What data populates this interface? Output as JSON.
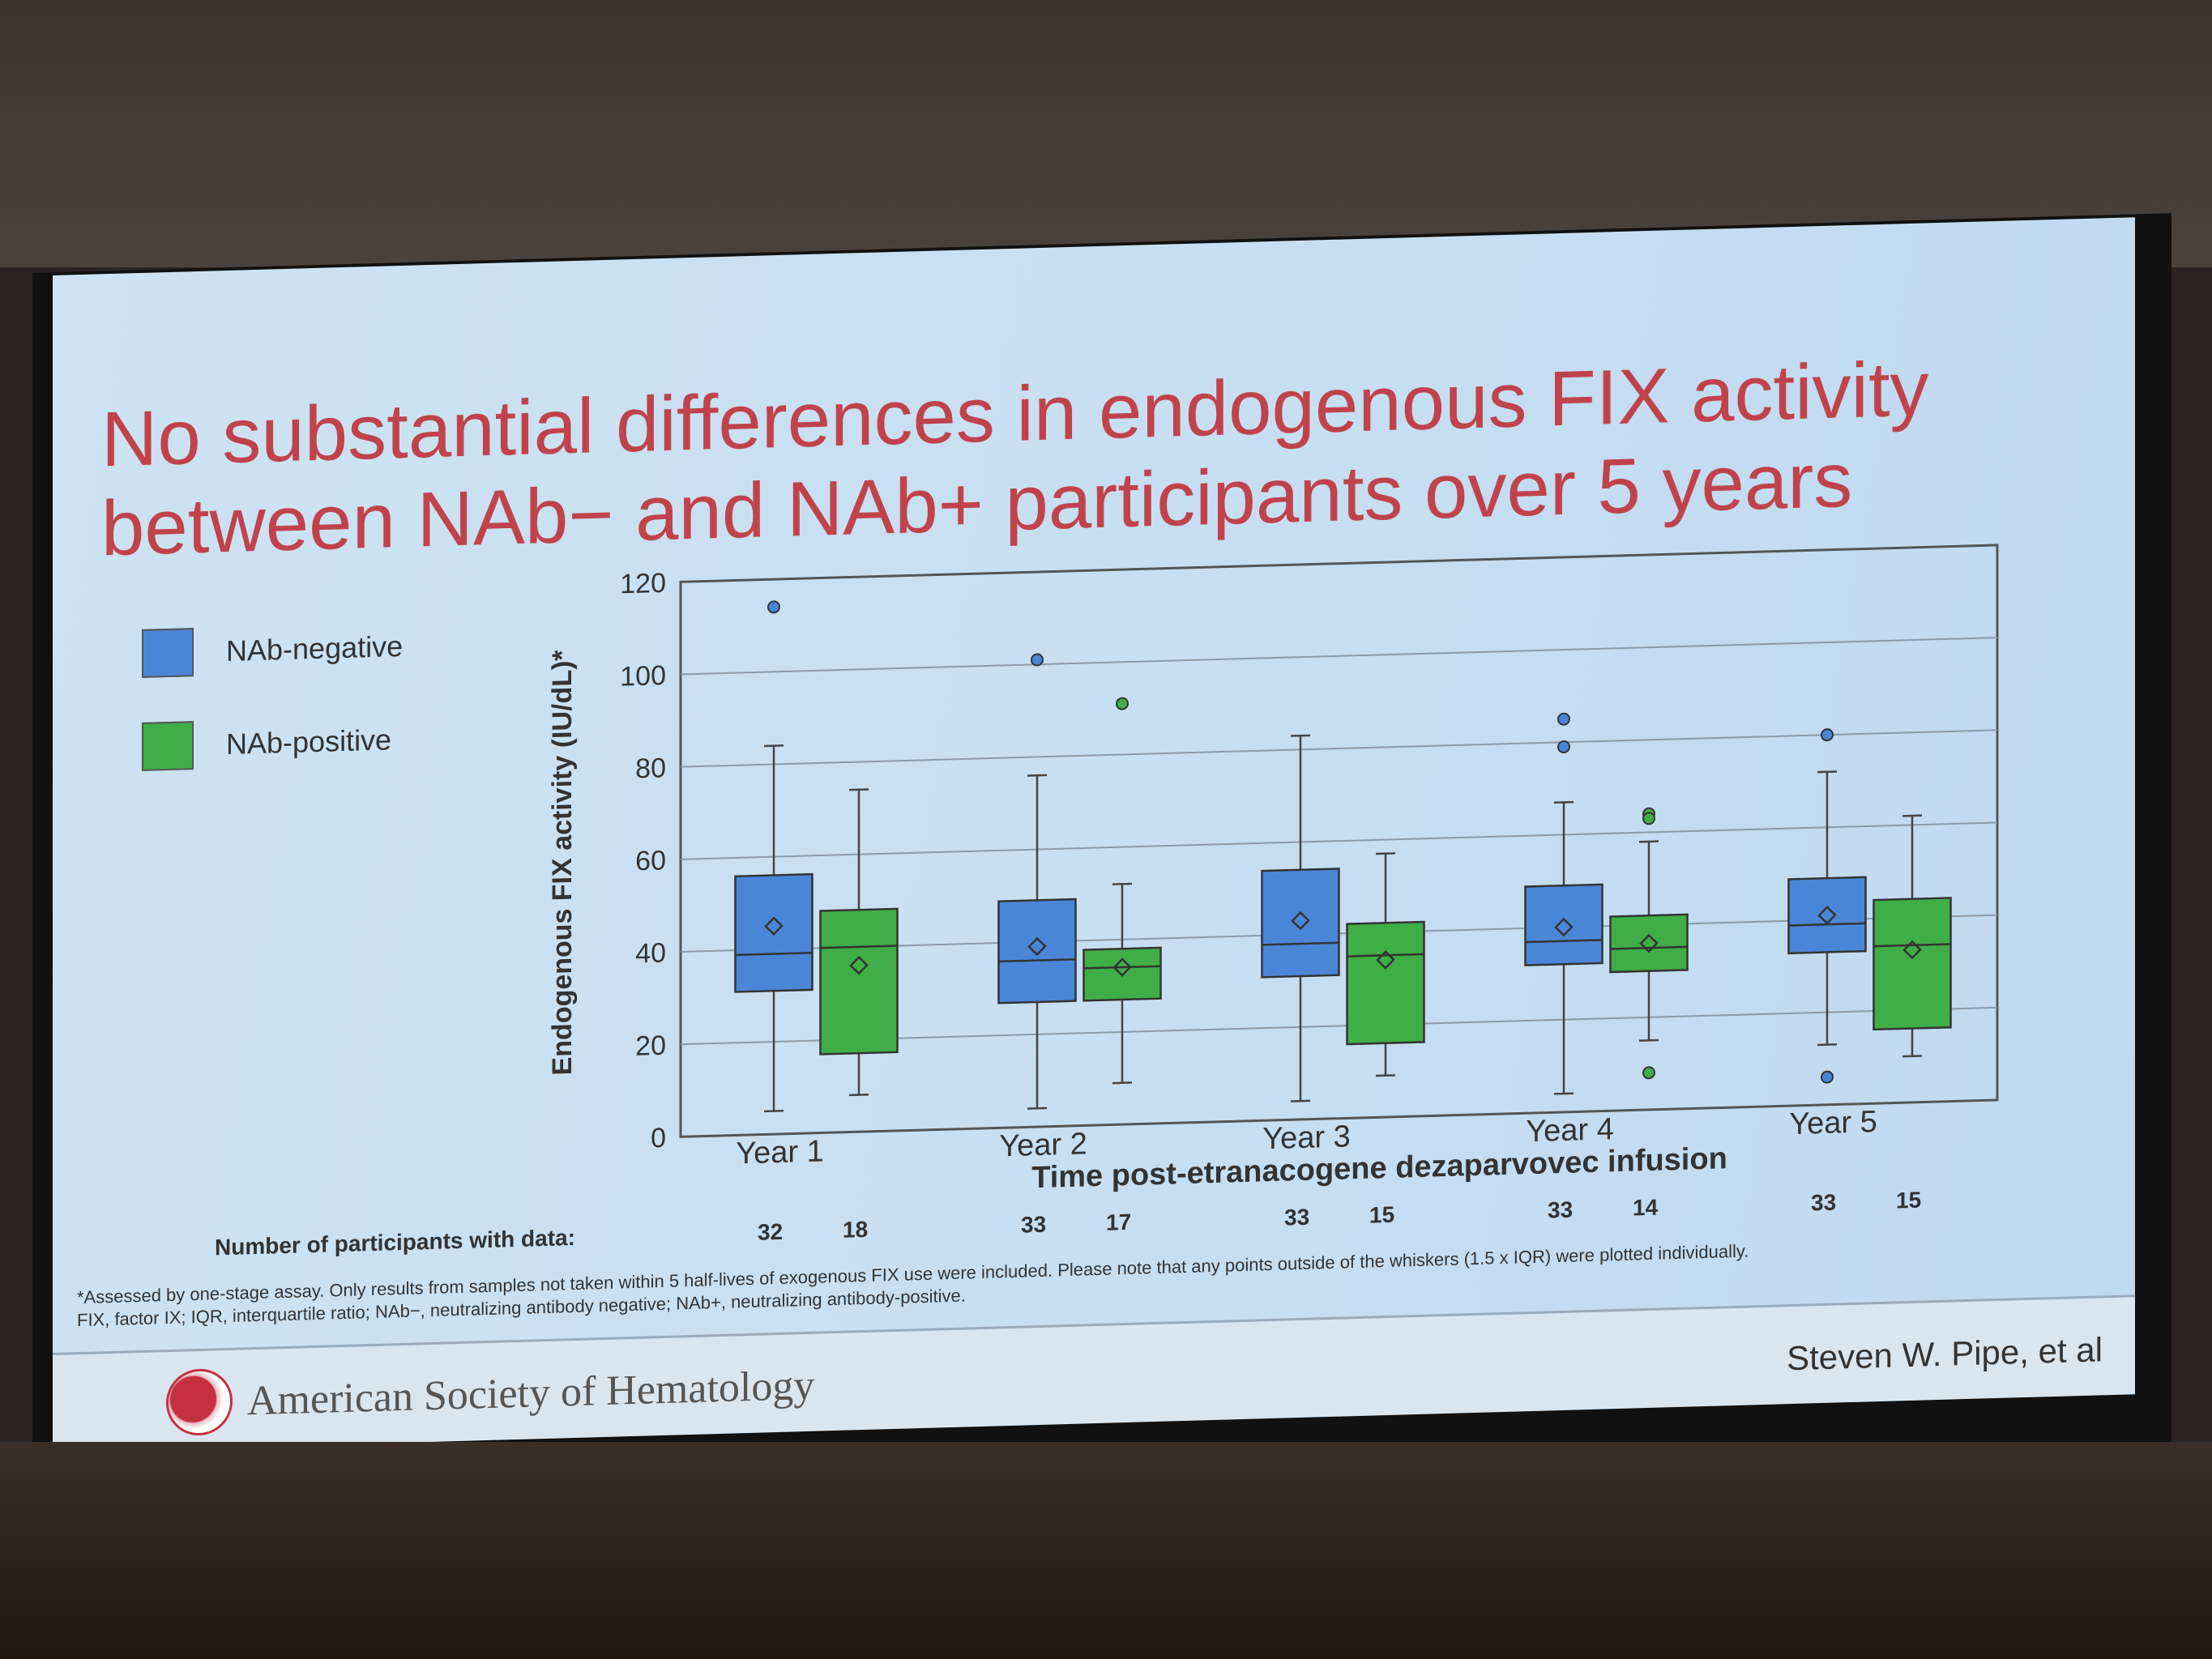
{
  "slide": {
    "title_line1": "No substantial differences in endogenous FIX activity",
    "title_line2": "between NAb− and NAb+ participants over 5 years",
    "participants_label": "Number of participants with data:",
    "footnote_line1": "*Assessed by one-stage assay. Only results from samples not taken within 5 half-lives of exogenous FIX use were included. Please note that any points outside of the whiskers (1.5 x IQR) were plotted individually.",
    "footnote_line2": "FIX, factor IX; IQR, interquartile ratio; NAb−, neutralizing antibody negative; NAb+, neutralizing antibody-positive.",
    "organization": "American Society of Hematology",
    "author": "Steven W. Pipe, et al"
  },
  "chart_data": {
    "type": "box",
    "title": "No substantial differences in endogenous FIX activity between NAb− and NAb+ participants over 5 years",
    "xlabel": "Time post-etranacogene dezaparvovec infusion",
    "ylabel": "Endogenous FIX activity (IU/dL)*",
    "ylim": [
      0,
      120
    ],
    "yticks": [
      "0",
      "20",
      "40",
      "60",
      "80",
      "100",
      "120"
    ],
    "grid": true,
    "legend_position": "left",
    "categories": [
      "Year 1",
      "Year 2",
      "Year 3",
      "Year 4",
      "Year 5"
    ],
    "series": [
      {
        "name": "NAb-negative",
        "color": "#4a86d8",
        "n": [
          "32",
          "33",
          "33",
          "33",
          "33"
        ],
        "boxes": [
          {
            "min": 5,
            "q1": 31,
            "median": 39,
            "q3": 56,
            "max": 84,
            "mean": 45,
            "outliers": [
              114
            ]
          },
          {
            "min": 4,
            "q1": 27,
            "median": 36,
            "q3": 49,
            "max": 76,
            "mean": 39,
            "outliers": [
              101
            ]
          },
          {
            "min": 4,
            "q1": 31,
            "median": 38,
            "q3": 54,
            "max": 83,
            "mean": 43,
            "outliers": []
          },
          {
            "min": 4,
            "q1": 32,
            "median": 37,
            "q3": 49,
            "max": 67,
            "mean": 40,
            "outliers": [
              85,
              79
            ]
          },
          {
            "min": 13,
            "q1": 33,
            "median": 39,
            "q3": 49,
            "max": 72,
            "mean": 41,
            "outliers": [
              80,
              6
            ]
          }
        ]
      },
      {
        "name": "NAb-positive",
        "color": "#3fae46",
        "n": [
          "18",
          "17",
          "15",
          "14",
          "15"
        ],
        "boxes": [
          {
            "min": 8,
            "q1": 17,
            "median": 40,
            "q3": 48,
            "max": 74,
            "mean": 36,
            "outliers": []
          },
          {
            "min": 9,
            "q1": 27,
            "median": 34,
            "q3": 38,
            "max": 52,
            "mean": 34,
            "outliers": [
              91
            ]
          },
          {
            "min": 9,
            "q1": 16,
            "median": 35,
            "q3": 42,
            "max": 57,
            "mean": 34,
            "outliers": []
          },
          {
            "min": 15,
            "q1": 30,
            "median": 35,
            "q3": 42,
            "max": 58,
            "mean": 36,
            "outliers": [
              64,
              63,
              8
            ]
          },
          {
            "min": 10,
            "q1": 16,
            "median": 34,
            "q3": 44,
            "max": 62,
            "mean": 33,
            "outliers": []
          }
        ]
      }
    ]
  }
}
